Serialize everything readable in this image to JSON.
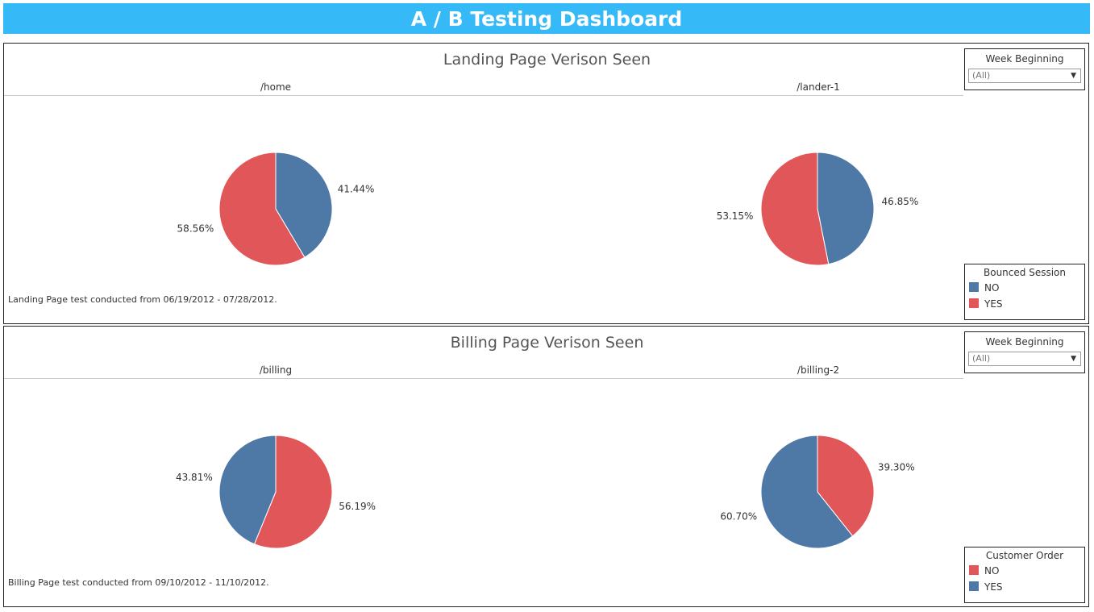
{
  "header": {
    "title": "A / B Testing Dashboard"
  },
  "colors": {
    "blue": "#4e79a7",
    "red": "#e15759",
    "banner": "#36baf7"
  },
  "landing": {
    "title": "Landing Page Verison Seen",
    "footnote": "Landing Page test conducted from 06/19/2012 - 07/28/2012.",
    "filter": {
      "title": "Week Beginning",
      "value": "(All)"
    },
    "legend": {
      "title": "Bounced Session",
      "items": [
        {
          "label": "NO",
          "color": "#4e79a7"
        },
        {
          "label": "YES",
          "color": "#e15759"
        }
      ]
    }
  },
  "billing": {
    "title": "Billing Page Verison Seen",
    "footnote": "Billing Page test conducted from 09/10/2012 - 11/10/2012.",
    "filter": {
      "title": "Week Beginning",
      "value": "(All)"
    },
    "legend": {
      "title": "Customer Order",
      "items": [
        {
          "label": "NO",
          "color": "#e15759"
        },
        {
          "label": "YES",
          "color": "#4e79a7"
        }
      ]
    }
  },
  "chart_data": [
    {
      "type": "pie",
      "title": "/home",
      "legend": "Bounced Session",
      "slices": [
        {
          "label": "NO",
          "value": 41.44,
          "display": "41.44%",
          "color": "#4e79a7"
        },
        {
          "label": "YES",
          "value": 58.56,
          "display": "58.56%",
          "color": "#e15759"
        }
      ]
    },
    {
      "type": "pie",
      "title": "/lander-1",
      "legend": "Bounced Session",
      "slices": [
        {
          "label": "NO",
          "value": 46.85,
          "display": "46.85%",
          "color": "#4e79a7"
        },
        {
          "label": "YES",
          "value": 53.15,
          "display": "53.15%",
          "color": "#e15759"
        }
      ]
    },
    {
      "type": "pie",
      "title": "/billing",
      "legend": "Customer Order",
      "slices": [
        {
          "label": "NO",
          "value": 56.19,
          "display": "56.19%",
          "color": "#e15759"
        },
        {
          "label": "YES",
          "value": 43.81,
          "display": "43.81%",
          "color": "#4e79a7"
        }
      ]
    },
    {
      "type": "pie",
      "title": "/billing-2",
      "legend": "Customer Order",
      "slices": [
        {
          "label": "NO",
          "value": 39.3,
          "display": "39.30%",
          "color": "#e15759"
        },
        {
          "label": "YES",
          "value": 60.7,
          "display": "60.70%",
          "color": "#4e79a7"
        }
      ]
    }
  ]
}
